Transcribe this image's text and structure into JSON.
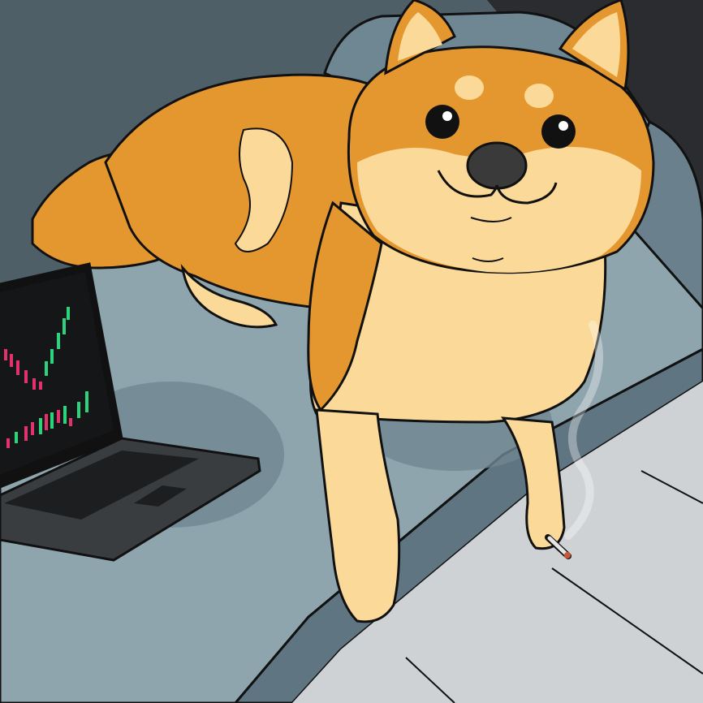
{
  "scene": {
    "subject": "shiba-inu-dog",
    "palette": {
      "wall": "#4e5f68",
      "couch_back": "#6f8793",
      "couch_seat": "#8fa5ae",
      "floor": "#cfd2d4",
      "fur_orange": "#e5972f",
      "fur_cream": "#fbd998",
      "outline": "#111111",
      "screen": "#141618",
      "candle_green": "#2ed27a",
      "candle_red": "#e3326b",
      "laptop_body": "#3a3d40"
    },
    "icons": [
      "laptop-icon",
      "candlestick-chart-icon",
      "cigarette-icon",
      "smoke-icon"
    ]
  }
}
